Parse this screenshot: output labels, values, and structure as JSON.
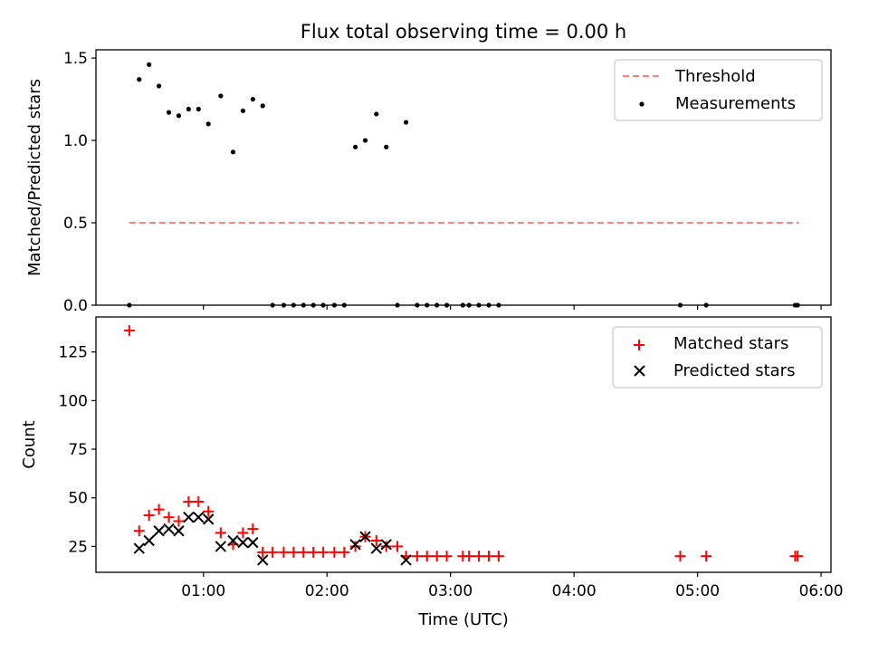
{
  "chart_data": [
    {
      "type": "scatter",
      "title": "Flux total observing time = 0.00 h",
      "ylabel": "Matched/Predicted stars",
      "xlabel": "",
      "ylim": [
        0,
        1.55
      ],
      "xlim": [
        0.13,
        6.08
      ],
      "yticks": [
        {
          "value": 0.0,
          "label": "0.0"
        },
        {
          "value": 0.5,
          "label": "0.5"
        },
        {
          "value": 1.0,
          "label": "1.0"
        },
        {
          "value": 1.5,
          "label": "1.5"
        }
      ],
      "legend": {
        "position": "top-right",
        "threshold_label": "Threshold",
        "measurements_label": "Measurements"
      },
      "threshold": {
        "value": 0.5,
        "x_start": 0.4,
        "x_end": 5.82,
        "color": "#ff7f7f"
      },
      "series": [
        {
          "name": "Measurements",
          "color": "#000000",
          "points": [
            [
              0.4,
              0.0
            ],
            [
              0.48,
              1.37
            ],
            [
              0.56,
              1.46
            ],
            [
              0.64,
              1.33
            ],
            [
              0.72,
              1.17
            ],
            [
              0.8,
              1.15
            ],
            [
              0.88,
              1.19
            ],
            [
              0.96,
              1.19
            ],
            [
              1.04,
              1.1
            ],
            [
              1.14,
              1.27
            ],
            [
              1.24,
              0.93
            ],
            [
              1.32,
              1.18
            ],
            [
              1.4,
              1.25
            ],
            [
              1.48,
              1.21
            ],
            [
              1.56,
              0.0
            ],
            [
              1.65,
              0.0
            ],
            [
              1.73,
              0.0
            ],
            [
              1.81,
              0.0
            ],
            [
              1.89,
              0.0
            ],
            [
              1.97,
              0.0
            ],
            [
              2.06,
              0.0
            ],
            [
              2.14,
              0.0
            ],
            [
              2.23,
              0.96
            ],
            [
              2.31,
              1.0
            ],
            [
              2.4,
              1.16
            ],
            [
              2.48,
              0.96
            ],
            [
              2.57,
              0.0
            ],
            [
              2.64,
              1.11
            ],
            [
              2.73,
              0.0
            ],
            [
              2.81,
              0.0
            ],
            [
              2.89,
              0.0
            ],
            [
              2.97,
              0.0
            ],
            [
              3.1,
              0.0
            ],
            [
              3.15,
              0.0
            ],
            [
              3.23,
              0.0
            ],
            [
              3.31,
              0.0
            ],
            [
              3.39,
              0.0
            ],
            [
              4.86,
              0.0
            ],
            [
              5.07,
              0.0
            ],
            [
              5.79,
              0.0
            ],
            [
              5.81,
              0.0
            ]
          ]
        }
      ]
    },
    {
      "type": "scatter",
      "title": "",
      "xlabel": "Time (UTC)",
      "ylabel": "Count",
      "ylim": [
        11.7,
        143
      ],
      "xlim": [
        0.13,
        6.08
      ],
      "yticks": [
        {
          "value": 25,
          "label": "25"
        },
        {
          "value": 50,
          "label": "50"
        },
        {
          "value": 75,
          "label": "75"
        },
        {
          "value": 100,
          "label": "100"
        },
        {
          "value": 125,
          "label": "125"
        }
      ],
      "xticks": [
        {
          "value": 1,
          "label": "01:00"
        },
        {
          "value": 2,
          "label": "02:00"
        },
        {
          "value": 3,
          "label": "03:00"
        },
        {
          "value": 4,
          "label": "04:00"
        },
        {
          "value": 5,
          "label": "05:00"
        },
        {
          "value": 6,
          "label": "06:00"
        }
      ],
      "legend": {
        "position": "top-right"
      },
      "series": [
        {
          "name": "Matched stars",
          "marker": "plus",
          "color": "#ff0000",
          "points": [
            [
              0.4,
              136
            ],
            [
              0.48,
              33
            ],
            [
              0.56,
              41
            ],
            [
              0.64,
              44
            ],
            [
              0.72,
              40
            ],
            [
              0.8,
              38
            ],
            [
              0.88,
              48
            ],
            [
              0.96,
              48
            ],
            [
              1.04,
              43
            ],
            [
              1.14,
              32
            ],
            [
              1.24,
              26
            ],
            [
              1.32,
              32
            ],
            [
              1.4,
              34
            ],
            [
              1.48,
              22
            ],
            [
              1.56,
              22
            ],
            [
              1.65,
              22
            ],
            [
              1.73,
              22
            ],
            [
              1.81,
              22
            ],
            [
              1.89,
              22
            ],
            [
              1.97,
              22
            ],
            [
              2.06,
              22
            ],
            [
              2.14,
              22
            ],
            [
              2.23,
              25
            ],
            [
              2.31,
              30
            ],
            [
              2.4,
              28
            ],
            [
              2.48,
              25
            ],
            [
              2.57,
              25
            ],
            [
              2.64,
              20
            ],
            [
              2.73,
              20
            ],
            [
              2.81,
              20
            ],
            [
              2.89,
              20
            ],
            [
              2.97,
              20
            ],
            [
              3.1,
              20
            ],
            [
              3.15,
              20
            ],
            [
              3.23,
              20
            ],
            [
              3.31,
              20
            ],
            [
              3.39,
              20
            ],
            [
              4.86,
              20
            ],
            [
              5.07,
              20
            ],
            [
              5.79,
              20
            ],
            [
              5.81,
              20
            ]
          ]
        },
        {
          "name": "Predicted stars",
          "marker": "x",
          "color": "#000000",
          "points": [
            [
              0.48,
              24
            ],
            [
              0.56,
              28
            ],
            [
              0.64,
              33
            ],
            [
              0.72,
              34
            ],
            [
              0.8,
              33
            ],
            [
              0.88,
              40
            ],
            [
              0.96,
              40
            ],
            [
              1.04,
              39
            ],
            [
              1.14,
              25
            ],
            [
              1.24,
              28
            ],
            [
              1.32,
              27
            ],
            [
              1.4,
              27
            ],
            [
              1.48,
              18
            ],
            [
              2.23,
              26
            ],
            [
              2.31,
              30
            ],
            [
              2.4,
              24
            ],
            [
              2.48,
              26
            ],
            [
              2.64,
              18
            ]
          ]
        }
      ]
    }
  ]
}
